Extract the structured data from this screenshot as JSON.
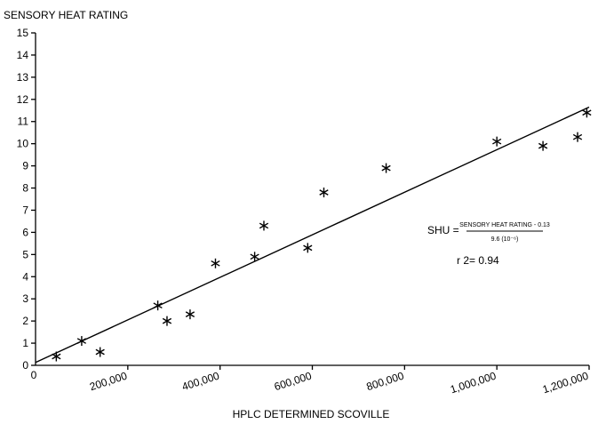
{
  "chart_data": {
    "type": "scatter",
    "title": "",
    "xlabel": "HPLC DETERMINED SCOVILLE",
    "ylabel": "SENSORY HEAT RATING",
    "xlim": [
      0,
      1200000
    ],
    "ylim": [
      0,
      15
    ],
    "x_ticks": [
      0,
      200000,
      400000,
      600000,
      800000,
      1000000,
      1200000
    ],
    "x_tick_labels": [
      "0",
      "200,000",
      "400,000",
      "600,000",
      "800,000",
      "1,000,000",
      "1,200,000"
    ],
    "y_ticks": [
      0,
      1,
      2,
      3,
      4,
      5,
      6,
      7,
      8,
      9,
      10,
      11,
      12,
      13,
      14,
      15
    ],
    "y_tick_labels": [
      "0",
      "1",
      "2",
      "3",
      "4",
      "5",
      "6",
      "7",
      "8",
      "9",
      "10",
      "11",
      "12",
      "13",
      "14",
      "15"
    ],
    "grid": false,
    "marker": "asterisk",
    "points": [
      {
        "x": 45000,
        "y": 0.4
      },
      {
        "x": 100000,
        "y": 1.1
      },
      {
        "x": 140000,
        "y": 0.6
      },
      {
        "x": 265000,
        "y": 2.7
      },
      {
        "x": 285000,
        "y": 2.0
      },
      {
        "x": 335000,
        "y": 2.3
      },
      {
        "x": 390000,
        "y": 4.6
      },
      {
        "x": 475000,
        "y": 4.9
      },
      {
        "x": 495000,
        "y": 6.3
      },
      {
        "x": 590000,
        "y": 5.3
      },
      {
        "x": 625000,
        "y": 7.8
      },
      {
        "x": 760000,
        "y": 8.9
      },
      {
        "x": 1000000,
        "y": 10.1
      },
      {
        "x": 1100000,
        "y": 9.9
      },
      {
        "x": 1175000,
        "y": 10.3
      },
      {
        "x": 1195000,
        "y": 11.4
      }
    ],
    "regression_line": {
      "x": [
        0,
        1200000
      ],
      "y": [
        0.13,
        11.65
      ]
    },
    "annotations": {
      "equation_lhs": "SHU =",
      "equation_numerator": "SENSORY HEAT RATING - 0.13",
      "equation_denominator": "9.6 (10⁻⁶)",
      "r_squared": "r 2= 0.94"
    }
  }
}
